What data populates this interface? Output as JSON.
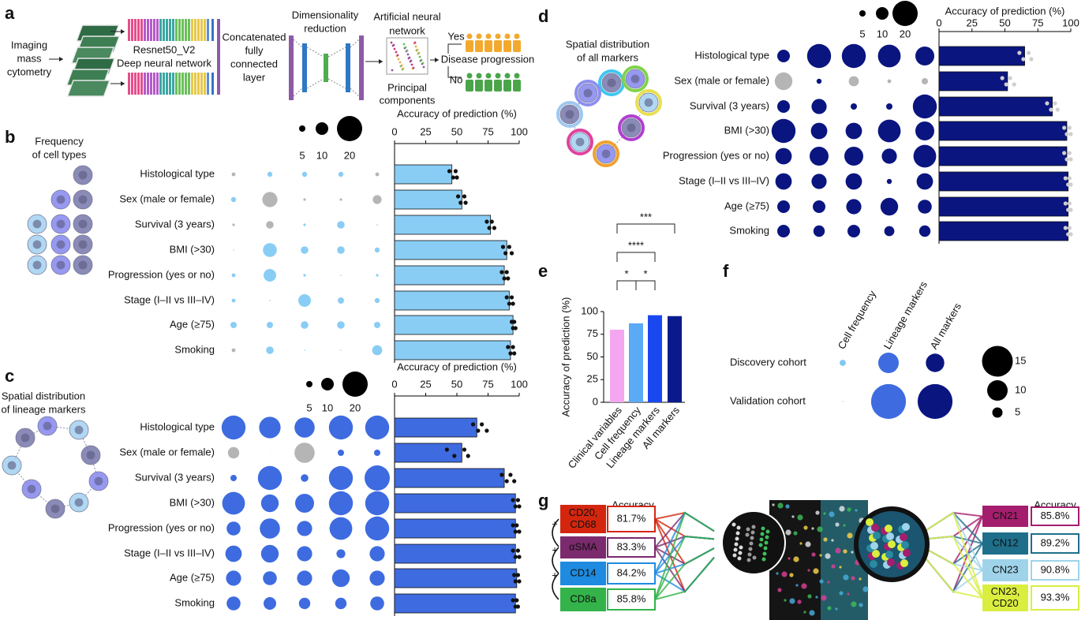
{
  "panel_labels": [
    "a",
    "b",
    "c",
    "d",
    "e",
    "f",
    "g"
  ],
  "schematic": {
    "imaging": [
      "Imaging",
      "mass",
      "cytometry"
    ],
    "resnet": "Resnet50_V2",
    "dnn": "Deep neural network",
    "concat": [
      "Concatenated",
      "fully",
      "connected",
      "layer"
    ],
    "dimred": [
      "Dimensionality",
      "reduction"
    ],
    "ann": [
      "Artificial neural",
      "network"
    ],
    "pcs": [
      "Principal",
      "components"
    ],
    "yes": "Yes",
    "no": "No",
    "outcome": "Disease progression"
  },
  "chart_data": [
    {
      "type": "bubble_bar",
      "title": [
        "Frequency",
        "of cell types"
      ],
      "xlabel": "Accuracy of prediction (%)",
      "categories": [
        "Histological type",
        "Sex (male or female)",
        "Survival (3 years)",
        "BMI (>30)",
        "Progression (yes or no)",
        "Stage (I–II vs III–IV)",
        "Age (≥75)",
        "Smoking"
      ],
      "bubble_legend": [
        5,
        10,
        20
      ],
      "bubbles": [
        [
          3,
          4,
          4,
          4,
          3
        ],
        [
          4,
          12,
          2,
          2,
          7
        ],
        [
          2,
          6,
          2,
          6,
          1
        ],
        [
          1,
          11,
          6,
          6,
          4
        ],
        [
          3,
          10,
          2,
          1,
          2
        ],
        [
          3,
          1,
          10,
          5,
          4
        ],
        [
          5,
          5,
          6,
          6,
          5
        ],
        [
          3,
          6,
          1,
          1,
          8
        ]
      ],
      "bubble_colors": [
        [
          "#b5b5b5",
          "#89cdf5",
          "#89cdf5",
          "#89cdf5",
          "#b5b5b5"
        ],
        [
          "#89cdf5",
          "#b5b5b5",
          "#b5b5b5",
          "#b5b5b5",
          "#b5b5b5"
        ],
        [
          "#b5b5b5",
          "#b5b5b5",
          "#89cdf5",
          "#89cdf5",
          "#b5b5b5"
        ],
        [
          "#89cdf5",
          "#89cdf5",
          "#89cdf5",
          "#89cdf5",
          "#89cdf5"
        ],
        [
          "#89cdf5",
          "#89cdf5",
          "#89cdf5",
          "#89cdf5",
          "#89cdf5"
        ],
        [
          "#89cdf5",
          "#89cdf5",
          "#89cdf5",
          "#89cdf5",
          "#89cdf5"
        ],
        [
          "#89cdf5",
          "#89cdf5",
          "#89cdf5",
          "#89cdf5",
          "#89cdf5"
        ],
        [
          "#b5b5b5",
          "#89cdf5",
          "#89cdf5",
          "#89cdf5",
          "#89cdf5"
        ]
      ],
      "values": [
        46,
        54,
        77,
        90,
        88,
        92,
        95,
        93
      ],
      "points": [
        [
          44,
          47,
          49,
          50
        ],
        [
          51,
          53,
          56,
          57
        ],
        [
          74,
          76,
          78,
          80
        ],
        [
          87,
          89,
          92,
          94
        ],
        [
          86,
          88,
          90,
          91
        ],
        [
          90,
          92,
          94,
          95
        ],
        [
          94,
          95,
          96,
          97
        ],
        [
          91,
          93,
          95,
          96
        ]
      ],
      "color": "#89cdf5",
      "point_color": "#111111",
      "xlim": [
        0,
        100
      ],
      "xticks": [
        0,
        25,
        50,
        75,
        100
      ]
    },
    {
      "type": "bubble_bar",
      "title": [
        "Spatial distribution",
        "of lineage markers"
      ],
      "xlabel": "Accuracy of prediction (%)",
      "categories": [
        "Histological type",
        "Sex (male or female)",
        "Survival (3 years)",
        "BMI (>30)",
        "Progression (yes or no)",
        "Stage (I–II vs III–IV)",
        "Age (≥75)",
        "Smoking"
      ],
      "bubble_legend": [
        5,
        10,
        20
      ],
      "bubbles": [
        [
          19,
          17,
          16,
          19,
          19
        ],
        [
          9,
          0.5,
          16,
          5,
          5
        ],
        [
          5,
          19,
          6,
          19,
          20
        ],
        [
          18,
          14,
          15,
          19,
          19
        ],
        [
          11,
          16,
          12,
          18,
          19
        ],
        [
          13,
          14,
          12,
          7,
          12
        ],
        [
          12,
          11,
          12,
          14,
          12
        ],
        [
          11,
          10,
          9,
          9,
          11
        ]
      ],
      "bubble_colors": [
        [
          "#3e6be0",
          "#3e6be0",
          "#3e6be0",
          "#3e6be0",
          "#3e6be0"
        ],
        [
          "#b5b5b5",
          "#b5b5b5",
          "#b5b5b5",
          "#3e6be0",
          "#3e6be0"
        ],
        [
          "#3e6be0",
          "#3e6be0",
          "#3e6be0",
          "#3e6be0",
          "#3e6be0"
        ],
        [
          "#3e6be0",
          "#3e6be0",
          "#3e6be0",
          "#3e6be0",
          "#3e6be0"
        ],
        [
          "#3e6be0",
          "#3e6be0",
          "#3e6be0",
          "#3e6be0",
          "#3e6be0"
        ],
        [
          "#3e6be0",
          "#3e6be0",
          "#3e6be0",
          "#3e6be0",
          "#3e6be0"
        ],
        [
          "#3e6be0",
          "#3e6be0",
          "#3e6be0",
          "#3e6be0",
          "#3e6be0"
        ],
        [
          "#3e6be0",
          "#3e6be0",
          "#3e6be0",
          "#3e6be0",
          "#3e6be0"
        ]
      ],
      "values": [
        66,
        54,
        88,
        97,
        97,
        97,
        98,
        97
      ],
      "points": [
        [
          63,
          67,
          70,
          74
        ],
        [
          42,
          48,
          56,
          59
        ],
        [
          86,
          90,
          93,
          96
        ],
        [
          95,
          97,
          99,
          100
        ],
        [
          95,
          97,
          98,
          100
        ],
        [
          95,
          97,
          99,
          100
        ],
        [
          96,
          97,
          99,
          100
        ],
        [
          95,
          97,
          98,
          99
        ]
      ],
      "color": "#3e6be0",
      "point_color": "#111111",
      "xlim": [
        0,
        100
      ],
      "xticks": [
        0,
        25,
        50,
        75,
        100
      ]
    },
    {
      "type": "bubble_bar",
      "title": [
        "Spatial distribution",
        "of all markers"
      ],
      "xlabel": "Accuracy of prediction (%)",
      "categories": [
        "Histological type",
        "Sex (male or female)",
        "Survival (3 years)",
        "BMI (>30)",
        "Progression (yes or no)",
        "Stage (I–II vs III–IV)",
        "Age (≥75)",
        "Smoking"
      ],
      "bubble_legend": [
        5,
        10,
        20
      ],
      "bubbles": [
        [
          10,
          19,
          19,
          18,
          15
        ],
        [
          14,
          4,
          8,
          3,
          5
        ],
        [
          10,
          12,
          5,
          5,
          19
        ],
        [
          19,
          13,
          13,
          18,
          15
        ],
        [
          13,
          15,
          15,
          12,
          18
        ],
        [
          13,
          12,
          13,
          4,
          13
        ],
        [
          10,
          10,
          12,
          14,
          11
        ],
        [
          10,
          9,
          10,
          8,
          9
        ]
      ],
      "bubble_colors": [
        [
          "#0a1580",
          "#0a1580",
          "#0a1580",
          "#0a1580",
          "#0a1580"
        ],
        [
          "#b5b5b5",
          "#0a1580",
          "#b5b5b5",
          "#b5b5b5",
          "#b5b5b5"
        ],
        [
          "#0a1580",
          "#0a1580",
          "#0a1580",
          "#0a1580",
          "#0a1580"
        ],
        [
          "#0a1580",
          "#0a1580",
          "#0a1580",
          "#0a1580",
          "#0a1580"
        ],
        [
          "#0a1580",
          "#0a1580",
          "#0a1580",
          "#0a1580",
          "#0a1580"
        ],
        [
          "#0a1580",
          "#0a1580",
          "#0a1580",
          "#0a1580",
          "#0a1580"
        ],
        [
          "#0a1580",
          "#0a1580",
          "#0a1580",
          "#0a1580",
          "#0a1580"
        ],
        [
          "#0a1580",
          "#0a1580",
          "#0a1580",
          "#0a1580",
          "#0a1580"
        ]
      ],
      "values": [
        65,
        52,
        86,
        97,
        97,
        98,
        98,
        98
      ],
      "points": [
        [
          61,
          64,
          68,
          70
        ],
        [
          48,
          51,
          54,
          57
        ],
        [
          82,
          85,
          88,
          90
        ],
        [
          95,
          97,
          99,
          100
        ],
        [
          95,
          97,
          99,
          100
        ],
        [
          96,
          98,
          99,
          100
        ],
        [
          96,
          98,
          99,
          100
        ],
        [
          96,
          98,
          99,
          100
        ]
      ],
      "color": "#0a1580",
      "point_color": "#cfcfcf",
      "xlim": [
        0,
        100
      ],
      "xticks": [
        0,
        25,
        50,
        75,
        100
      ]
    },
    {
      "type": "bar",
      "ylabel": "Accuracy of prediction (%)",
      "categories": [
        "Clinical variables",
        "Cell frequency",
        "Lineage markers",
        "All markers"
      ],
      "values": [
        80,
        87,
        96,
        95
      ],
      "colors": [
        "#f4a6f0",
        "#5aaaf5",
        "#1a48f0",
        "#0a1a8c"
      ],
      "annotations": [
        "*",
        "*",
        "****",
        "***"
      ],
      "ylim": [
        0,
        100
      ],
      "yticks": [
        0,
        25,
        50,
        75,
        100
      ]
    },
    {
      "type": "bubble_matrix",
      "columns": [
        "Cell frequency",
        "Lineage markers",
        "All markers"
      ],
      "rows": [
        "Discovery cohort",
        "Validation cohort"
      ],
      "sizes": [
        [
          3,
          10,
          9
        ],
        [
          0.5,
          17,
          17
        ]
      ],
      "colors": [
        "#7fc8f2",
        "#3e6be0",
        "#0a1580"
      ],
      "size_legend": [
        15,
        10,
        5
      ]
    }
  ],
  "network": {
    "accuracy_label": "Accuracy",
    "plus": "+",
    "left": [
      {
        "label": [
          "CD20,",
          "CD68"
        ],
        "accuracy": "81.7%",
        "color": "#d4260f"
      },
      {
        "label": [
          "αSMA"
        ],
        "accuracy": "83.3%",
        "color": "#7b2a6e"
      },
      {
        "label": [
          "CD14"
        ],
        "accuracy": "84.2%",
        "color": "#1e8be0"
      },
      {
        "label": [
          "CD8a"
        ],
        "accuracy": "85.8%",
        "color": "#33b34a"
      }
    ],
    "right": [
      {
        "label": [
          "CN21"
        ],
        "accuracy": "85.8%",
        "color": "#a51e6e"
      },
      {
        "label": [
          "CN12"
        ],
        "accuracy": "89.2%",
        "color": "#1f6f8b"
      },
      {
        "label": [
          "CN23"
        ],
        "accuracy": "90.8%",
        "color": "#9fd3ea"
      },
      {
        "label": [
          "CN23,",
          "CD20"
        ],
        "accuracy": "93.3%",
        "color": "#d9ee3f"
      }
    ]
  }
}
